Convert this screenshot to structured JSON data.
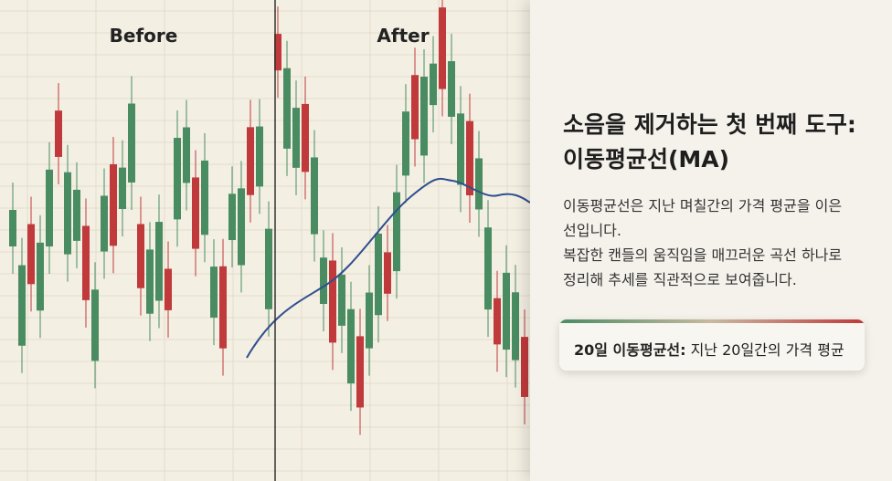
{
  "labels": {
    "before": "Before",
    "after": "After"
  },
  "title": [
    "소음을 제거하는 첫 번째 도구:",
    "이동평균선(MA)"
  ],
  "description": [
    "이동평균선은 지난 며칠간의 가격 평균을 이은",
    "선입니다.",
    "복잡한 캔들의 움직임을 매끄러운 곡선 하나로",
    "정리해 추세를 직관적으로 보여줍니다."
  ],
  "callout": {
    "term": "20일 이동평균선:",
    "text": "지난 20일간의 가격 평균"
  }
}
